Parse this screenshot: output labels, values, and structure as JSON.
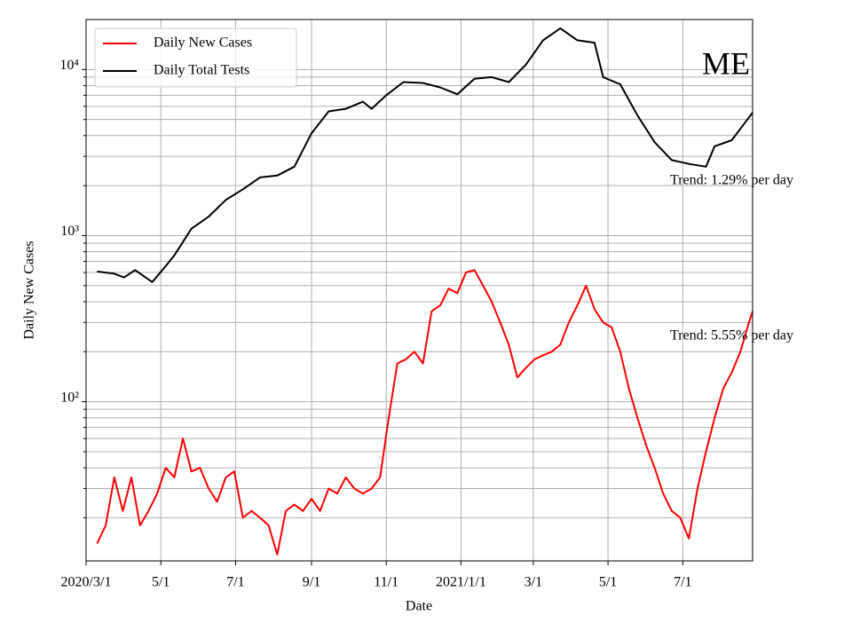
{
  "chart_data": {
    "type": "line",
    "annotation": "ME",
    "xlabel": "Date",
    "ylabel": "Daily New Cases",
    "log_y": true,
    "grid": true,
    "legend": "upper left",
    "xlim": [
      "2020-03-01",
      "2021-08-27"
    ],
    "xticks": [
      {
        "value": "2020-03-01",
        "label": "2020/3/1"
      },
      {
        "value": "2020-05-01",
        "label": "5/1"
      },
      {
        "value": "2020-07-01",
        "label": "7/1"
      },
      {
        "value": "2020-09-01",
        "label": "9/1"
      },
      {
        "value": "2020-11-01",
        "label": "11/1"
      },
      {
        "value": "2021-01-01",
        "label": "2021/1/1"
      },
      {
        "value": "2021-03-01",
        "label": "3/1"
      },
      {
        "value": "2021-05-01",
        "label": "5/1"
      },
      {
        "value": "2021-07-01",
        "label": "7/1"
      }
    ],
    "ylim": [
      11,
      20000
    ],
    "yticks": [
      {
        "value": 100,
        "label": "10²"
      },
      {
        "value": 1000,
        "label": "10³"
      },
      {
        "value": 10000,
        "label": "10⁴"
      }
    ],
    "minor_yticks": [
      20,
      30,
      40,
      50,
      60,
      70,
      80,
      90,
      200,
      300,
      400,
      500,
      600,
      700,
      800,
      900,
      2000,
      3000,
      4000,
      5000,
      6000,
      7000,
      8000,
      9000
    ],
    "trend_labels": [
      {
        "text": "Trend: 1.29% per day",
        "series": 1
      },
      {
        "text": "Trend: 5.55% per day",
        "series": 0
      }
    ],
    "series": [
      {
        "name": "Daily New Cases",
        "color": "#ff0000",
        "x": [
          "2020-03-10",
          "2020-03-17",
          "2020-03-24",
          "2020-03-31",
          "2020-04-07",
          "2020-04-14",
          "2020-04-21",
          "2020-04-28",
          "2020-05-05",
          "2020-05-12",
          "2020-05-19",
          "2020-05-26",
          "2020-06-02",
          "2020-06-09",
          "2020-06-16",
          "2020-06-23",
          "2020-06-30",
          "2020-07-07",
          "2020-07-14",
          "2020-07-21",
          "2020-07-28",
          "2020-08-04",
          "2020-08-11",
          "2020-08-18",
          "2020-08-25",
          "2020-09-01",
          "2020-09-08",
          "2020-09-15",
          "2020-09-22",
          "2020-09-29",
          "2020-10-06",
          "2020-10-13",
          "2020-10-20",
          "2020-10-27",
          "2020-11-03",
          "2020-11-10",
          "2020-11-17",
          "2020-11-24",
          "2020-12-01",
          "2020-12-08",
          "2020-12-15",
          "2020-12-22",
          "2020-12-29",
          "2021-01-05",
          "2021-01-12",
          "2021-01-19",
          "2021-01-26",
          "2021-02-02",
          "2021-02-09",
          "2021-02-16",
          "2021-02-23",
          "2021-03-02",
          "2021-03-09",
          "2021-03-16",
          "2021-03-23",
          "2021-03-30",
          "2021-04-06",
          "2021-04-13",
          "2021-04-20",
          "2021-04-27",
          "2021-05-04",
          "2021-05-11",
          "2021-05-18",
          "2021-05-25",
          "2021-06-01",
          "2021-06-08",
          "2021-06-15",
          "2021-06-22",
          "2021-06-29",
          "2021-07-06",
          "2021-07-13",
          "2021-07-20",
          "2021-07-27",
          "2021-08-03",
          "2021-08-10",
          "2021-08-17",
          "2021-08-24",
          "2021-08-27"
        ],
        "values": [
          14,
          18,
          35,
          22,
          35,
          18,
          22,
          28,
          40,
          35,
          60,
          38,
          40,
          30,
          25,
          35,
          38,
          20,
          22,
          20,
          18,
          12,
          22,
          24,
          22,
          26,
          22,
          30,
          28,
          35,
          30,
          28,
          30,
          35,
          80,
          170,
          180,
          200,
          170,
          350,
          380,
          480,
          450,
          600,
          620,
          500,
          400,
          300,
          220,
          140,
          160,
          180,
          190,
          200,
          220,
          300,
          380,
          500,
          360,
          300,
          280,
          200,
          120,
          80,
          55,
          40,
          28,
          22,
          20,
          15,
          30,
          50,
          80,
          120,
          150,
          200,
          300,
          350
        ]
      },
      {
        "name": "Daily Total Tests",
        "color": "#000000",
        "x": [
          "2020-03-10",
          "2020-03-24",
          "2020-04-01",
          "2020-04-10",
          "2020-04-24",
          "2020-05-05",
          "2020-05-12",
          "2020-05-26",
          "2020-06-09",
          "2020-06-23",
          "2020-07-07",
          "2020-07-21",
          "2020-08-04",
          "2020-08-18",
          "2020-09-01",
          "2020-09-15",
          "2020-09-29",
          "2020-10-13",
          "2020-10-20",
          "2020-11-01",
          "2020-11-15",
          "2020-12-01",
          "2020-12-15",
          "2020-12-29",
          "2021-01-12",
          "2021-01-26",
          "2021-02-09",
          "2021-02-23",
          "2021-03-09",
          "2021-03-23",
          "2021-04-06",
          "2021-04-20",
          "2021-04-27",
          "2021-05-11",
          "2021-05-25",
          "2021-06-08",
          "2021-06-22",
          "2021-07-06",
          "2021-07-20",
          "2021-07-27",
          "2021-08-10",
          "2021-08-20",
          "2021-08-27"
        ],
        "values": [
          608,
          590,
          560,
          620,
          525,
          655,
          760,
          1100,
          1300,
          1640,
          1900,
          2240,
          2300,
          2600,
          4130,
          5600,
          5800,
          6400,
          5800,
          7000,
          8400,
          8300,
          7800,
          7100,
          8800,
          9000,
          8400,
          10700,
          15000,
          17700,
          15000,
          14500,
          9000,
          8150,
          5300,
          3650,
          2850,
          2700,
          2600,
          3450,
          3750,
          4700,
          5500
        ]
      }
    ]
  }
}
